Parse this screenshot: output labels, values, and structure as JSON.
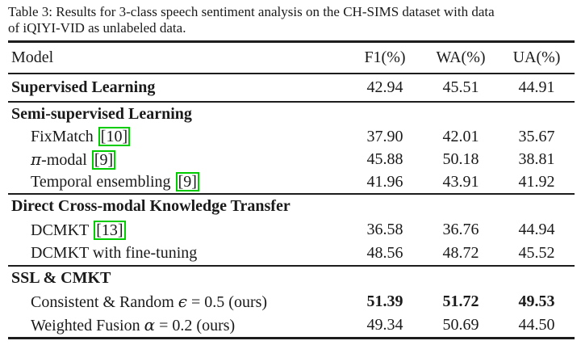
{
  "caption": {
    "line1": "Table 3: Results for 3-class speech sentiment analysis on the CH-SIMS dataset with data",
    "line2": "of iQIYI-VID as unlabeled data."
  },
  "header": {
    "model": "Model",
    "f1": "F1(%)",
    "wa": "WA(%)",
    "ua": "UA(%)"
  },
  "colors": {
    "citation_border": "#00cc00",
    "text": "#1a1a1a",
    "background": "#ffffff",
    "rule": "#1d1d1d"
  },
  "rows": {
    "supervised": {
      "label": "Supervised Learning",
      "f1": "42.94",
      "wa": "45.51",
      "ua": "44.91"
    },
    "semi_header": {
      "label": "Semi-supervised Learning"
    },
    "fixmatch": {
      "label": "FixMatch",
      "cite": "[10]",
      "f1": "37.90",
      "wa": "42.01",
      "ua": "35.67"
    },
    "pi_modal": {
      "sym": "π",
      "label": "-modal",
      "cite": "[9]",
      "f1": "45.88",
      "wa": "50.18",
      "ua": "38.81"
    },
    "temporal": {
      "label": "Temporal ensembling",
      "cite": "[9]",
      "f1": "41.96",
      "wa": "43.91",
      "ua": "41.92"
    },
    "dcmkt_header": {
      "label": "Direct Cross-modal Knowledge Transfer"
    },
    "dcmkt": {
      "label": "DCMKT",
      "cite": "[13]",
      "f1": "36.58",
      "wa": "36.76",
      "ua": "44.94"
    },
    "dcmkt_ft": {
      "label": "DCMKT with fine-tuning",
      "f1": "48.56",
      "wa": "48.72",
      "ua": "45.52"
    },
    "ssl_header": {
      "label": "SSL & CMKT"
    },
    "consistent": {
      "pre": "Consistent & Random ",
      "sym": "ϵ",
      "post": " = 0.5 (ours)",
      "f1": "51.39",
      "wa": "51.72",
      "ua": "49.53"
    },
    "weighted": {
      "pre": "Weighted Fusion ",
      "sym": "α",
      "post": " = 0.2 (ours)",
      "f1": "49.34",
      "wa": "50.69",
      "ua": "44.50"
    }
  }
}
